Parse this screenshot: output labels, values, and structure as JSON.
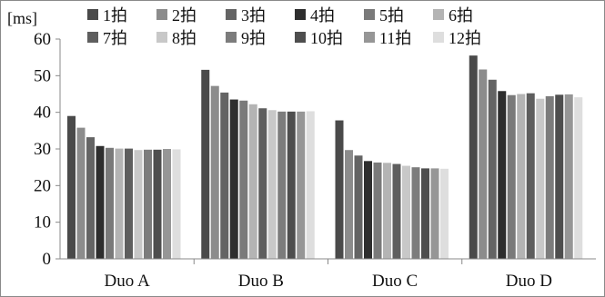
{
  "chart_data": {
    "type": "bar",
    "unit_label": "[ms]",
    "categories": [
      "Duo A",
      "Duo B",
      "Duo C",
      "Duo D"
    ],
    "ylim": [
      0,
      60
    ],
    "yticks": [
      0,
      10,
      20,
      30,
      40,
      50,
      60
    ],
    "grid": false,
    "legend_position": "top",
    "series": [
      {
        "name": "1拍",
        "color": "#4a4a4a",
        "values": [
          39.0,
          51.6,
          37.8,
          55.5
        ]
      },
      {
        "name": "2拍",
        "color": "#8c8c8c",
        "values": [
          35.8,
          47.2,
          29.7,
          51.7
        ]
      },
      {
        "name": "3拍",
        "color": "#646464",
        "values": [
          33.2,
          45.4,
          28.2,
          48.9
        ]
      },
      {
        "name": "4拍",
        "color": "#2e2e2e",
        "values": [
          30.8,
          43.5,
          26.7,
          45.8
        ]
      },
      {
        "name": "5拍",
        "color": "#7a7a7a",
        "values": [
          30.3,
          43.2,
          26.3,
          44.7
        ]
      },
      {
        "name": "6拍",
        "color": "#b4b4b4",
        "values": [
          30.1,
          42.2,
          26.2,
          45.0
        ]
      },
      {
        "name": "7拍",
        "color": "#5e5e5e",
        "values": [
          30.1,
          41.1,
          25.9,
          45.2
        ]
      },
      {
        "name": "8拍",
        "color": "#c8c8c8",
        "values": [
          29.7,
          40.6,
          25.4,
          43.7
        ]
      },
      {
        "name": "9拍",
        "color": "#7c7c7c",
        "values": [
          29.8,
          40.2,
          25.0,
          44.4
        ]
      },
      {
        "name": "10拍",
        "color": "#4e4e4e",
        "values": [
          29.8,
          40.2,
          24.7,
          44.8
        ]
      },
      {
        "name": "11拍",
        "color": "#969696",
        "values": [
          30.0,
          40.2,
          24.7,
          44.9
        ]
      },
      {
        "name": "12拍",
        "color": "#dedede",
        "values": [
          29.9,
          40.3,
          24.6,
          44.1
        ]
      }
    ]
  }
}
